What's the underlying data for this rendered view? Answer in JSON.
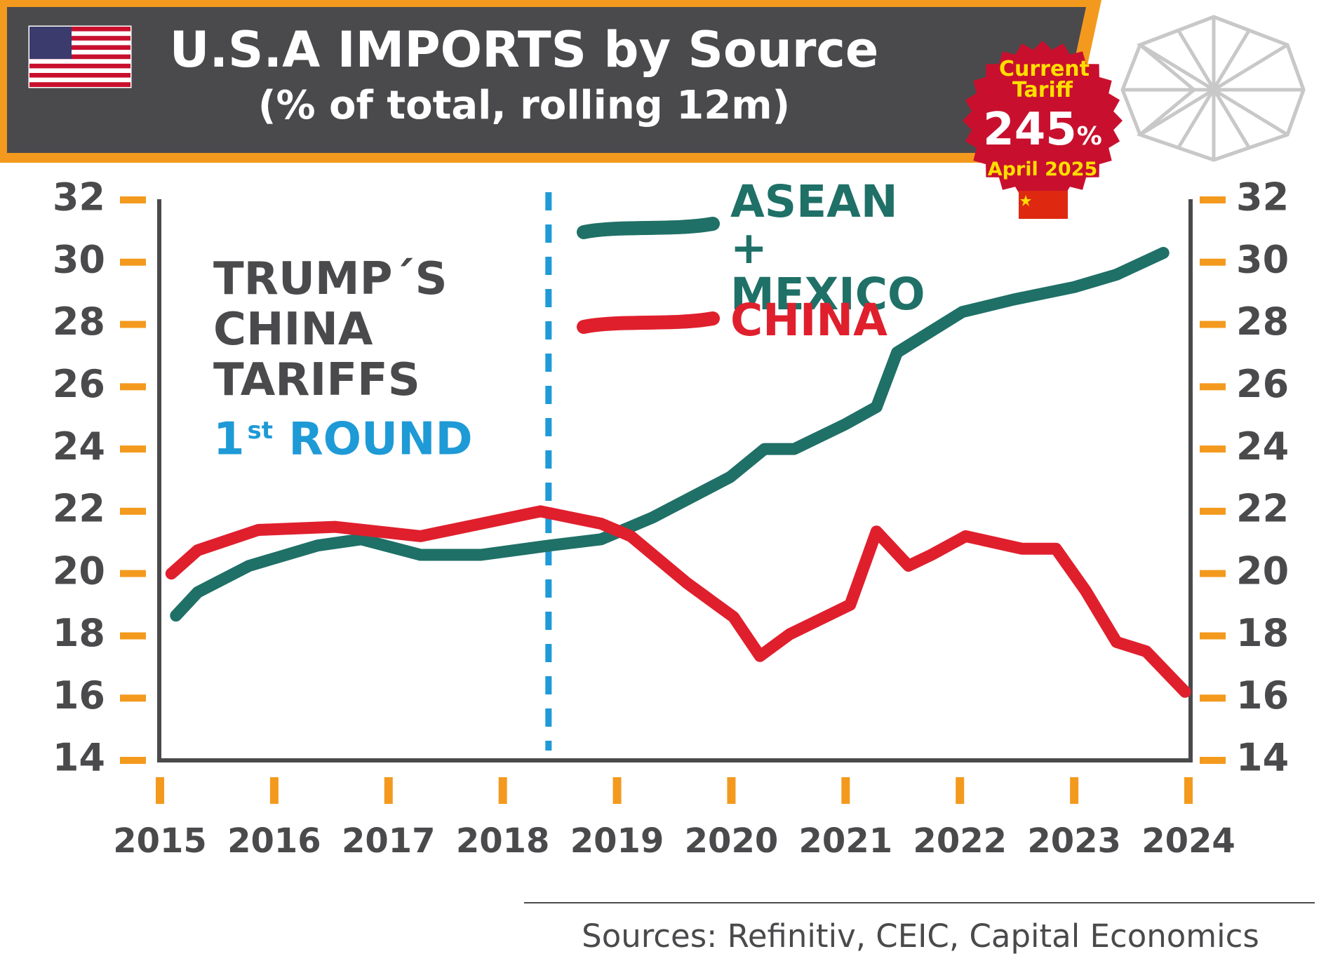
{
  "chart_data": {
    "type": "line",
    "title": "U.S.A IMPORTS by Source",
    "subtitle": "(% of total, rolling 12m)",
    "series": [
      {
        "name": "ASEAN + MEXICO",
        "color": "#1f7067",
        "x": [
          2015.14,
          2015.33,
          2015.78,
          2016.38,
          2016.76,
          2017.28,
          2017.81,
          2018.41,
          2018.86,
          2019.31,
          2019.99,
          2020.29,
          2020.55,
          2021.0,
          2021.27,
          2021.45,
          2022.02,
          2022.47,
          2023.0,
          2023.37,
          2023.78
        ],
        "values": [
          18.65,
          19.4,
          20.25,
          20.9,
          21.1,
          20.6,
          20.6,
          20.9,
          21.1,
          21.8,
          23.1,
          24.0,
          24.0,
          24.8,
          25.35,
          27.1,
          28.4,
          28.8,
          29.2,
          29.6,
          30.3
        ]
      },
      {
        "name": "CHINA",
        "color": "#e01f2d",
        "x": [
          2015.1,
          2015.33,
          2015.86,
          2016.53,
          2017.28,
          2017.81,
          2018.33,
          2018.86,
          2019.12,
          2019.61,
          2020.02,
          2020.25,
          2020.51,
          2021.04,
          2021.27,
          2021.55,
          2021.75,
          2022.05,
          2022.54,
          2022.84,
          2023.1,
          2023.37,
          2023.63,
          2023.97
        ],
        "values": [
          20.0,
          20.75,
          21.4,
          21.5,
          21.2,
          21.6,
          22.0,
          21.6,
          21.2,
          19.7,
          18.6,
          17.35,
          18.05,
          19.0,
          21.35,
          20.25,
          20.6,
          21.2,
          20.8,
          20.8,
          19.45,
          17.8,
          17.5,
          16.2
        ]
      }
    ],
    "xlim": [
      2015,
      2024
    ],
    "xticks": [
      2015,
      2016,
      2017,
      2018,
      2019,
      2020,
      2021,
      2022,
      2023,
      2024
    ],
    "ylim": [
      14,
      32
    ],
    "yticks": [
      14,
      16,
      18,
      20,
      22,
      24,
      26,
      28,
      30,
      32
    ],
    "marker_x": 2018.4,
    "annotation": {
      "text": "TRUMP´S CHINA TARIFFS",
      "ordinal": "1",
      "ordinal_suffix": "st",
      "round": "ROUND"
    },
    "badge": {
      "label": "Current Tariff",
      "tariff": "245",
      "tariff_unit": "%",
      "date": "April 2025"
    },
    "source": "Sources: Refinitiv, CEIC, Capital Economics"
  }
}
